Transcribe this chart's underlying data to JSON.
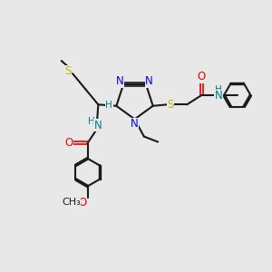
{
  "bg_color": "#e8e8e8",
  "bond_color": "#1a1a1a",
  "N_color": "#0000ee",
  "O_color": "#ee0000",
  "S_color": "#bbbb00",
  "H_color": "#008080",
  "font_size": 8.5,
  "figsize": [
    3.0,
    3.0
  ],
  "dpi": 100,
  "xlim": [
    0,
    10
  ],
  "ylim": [
    0,
    10
  ]
}
